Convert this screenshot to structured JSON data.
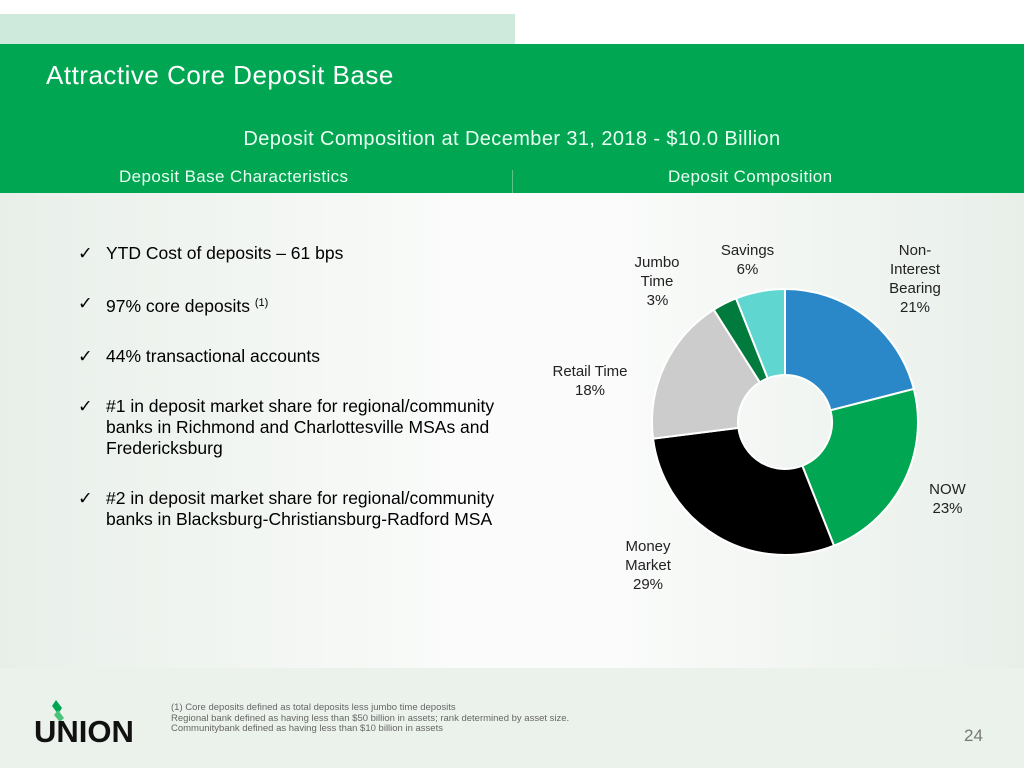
{
  "header": {
    "title": "Attractive Core Deposit Base",
    "subtitle": "Deposit Composition at December 31, 2018 - $10.0 Billion",
    "left_heading": "Deposit Base Characteristics",
    "right_heading": "Deposit Composition"
  },
  "bullets": [
    {
      "text": "YTD Cost of deposits – 61 bps"
    },
    {
      "text": "97% core deposits",
      "sup": "(1)"
    },
    {
      "text": "44% transactional accounts"
    },
    {
      "text": "#1 in deposit market share for regional/community banks in Richmond and Charlottesville MSAs and Fredericksburg"
    },
    {
      "text": "#2 in deposit market share for regional/community banks in Blacksburg-Christiansburg-Radford MSA"
    }
  ],
  "chart_data": {
    "type": "pie",
    "donut": true,
    "start": "12 o'clock, clockwise",
    "slices": [
      {
        "label": "Non-Interest Bearing",
        "value": 21,
        "value_label": "21%",
        "color": "#2a87c8"
      },
      {
        "label": "NOW",
        "value": 23,
        "value_label": "23%",
        "color": "#00a651"
      },
      {
        "label": "Money Market",
        "value": 29,
        "value_label": "29%",
        "color": "#000000"
      },
      {
        "label": "Retail Time",
        "value": 18,
        "value_label": "18%",
        "color": "#cccccc"
      },
      {
        "label": "Jumbo Time",
        "value": 3,
        "value_label": "3%",
        "color": "#007a3d"
      },
      {
        "label": "Savings",
        "value": 6,
        "value_label": "6%",
        "color": "#5fd6d0"
      }
    ]
  },
  "footnotes": [
    "(1) Core deposits defined as total deposits less jumbo time deposits",
    "Regional bank defined as having less than $50 billion in assets; rank determined by asset size.",
    "Communitybank defined as having less than $10 billion in assets"
  ],
  "page_number": "24",
  "logo_text": "UNION",
  "icons": {
    "check": "checkmark-icon"
  }
}
